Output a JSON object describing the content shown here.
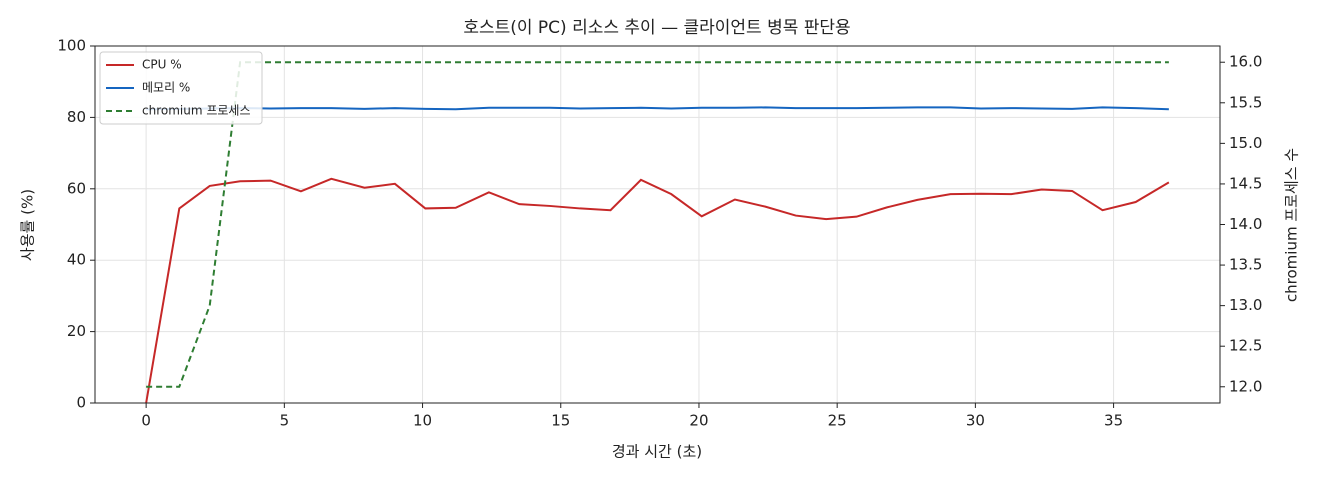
{
  "chart_data": {
    "type": "line",
    "title": "호스트(이 PC) 리소스 추이 — 클라이언트 병목 판단용",
    "x_label": "경과 시간 (초)",
    "y_label": "사용률 (%)",
    "y2_label": "chromium 프로세스 수",
    "x": [
      0,
      1.2,
      2.3,
      3.4,
      4.5,
      5.6,
      6.7,
      7.9,
      9.0,
      10.1,
      11.2,
      12.4,
      13.5,
      14.6,
      15.7,
      16.8,
      17.9,
      19.0,
      20.1,
      21.3,
      22.4,
      23.5,
      24.6,
      25.7,
      26.8,
      27.9,
      29.1,
      30.2,
      31.3,
      32.4,
      33.5,
      34.6,
      35.8,
      37.0
    ],
    "series": [
      {
        "name": "CPU %",
        "color": "#c62828",
        "dash": false,
        "values": [
          0,
          54.5,
          60.8,
          62.1,
          62.3,
          59.3,
          62.8,
          60.3,
          61.4,
          54.5,
          54.7,
          59.0,
          55.7,
          55.2,
          54.5,
          54.0,
          62.5,
          58.5,
          52.3,
          57.0,
          55.0,
          52.5,
          51.5,
          52.2,
          54.8,
          56.9,
          58.5,
          58.6,
          58.5,
          59.8,
          59.4,
          54.0,
          56.3,
          61.8
        ]
      },
      {
        "name": "메모리 %",
        "color": "#1565c0",
        "dash": false,
        "values": [
          82.3,
          82.4,
          82.5,
          82.6,
          82.5,
          82.6,
          82.6,
          82.4,
          82.6,
          82.4,
          82.3,
          82.7,
          82.7,
          82.7,
          82.5,
          82.6,
          82.7,
          82.5,
          82.7,
          82.7,
          82.8,
          82.6,
          82.6,
          82.6,
          82.7,
          82.8,
          82.8,
          82.5,
          82.6,
          82.5,
          82.4,
          82.8,
          82.6,
          82.3
        ]
      },
      {
        "name": "chromium 프로세스",
        "color": "#2e7d32",
        "dash": true,
        "axis": "y2",
        "values": [
          12,
          12,
          13,
          16,
          16,
          16,
          16,
          16,
          16,
          16,
          16,
          16,
          16,
          16,
          16,
          16,
          16,
          16,
          16,
          16,
          16,
          16,
          16,
          16,
          16,
          16,
          16,
          16,
          16,
          16,
          16,
          16,
          16,
          16
        ]
      }
    ],
    "xlim": [
      -1.85,
      38.85
    ],
    "xticks": [
      0,
      5,
      10,
      15,
      20,
      25,
      30,
      35
    ],
    "ylim": [
      0,
      100
    ],
    "yticks": [
      0,
      20,
      40,
      60,
      80,
      100
    ],
    "y2lim": [
      11.8,
      16.2
    ],
    "y2ticks": [
      {
        "value": 12,
        "label": "12.0"
      },
      12.5,
      {
        "value": 13,
        "label": "13.0"
      },
      13.5,
      {
        "value": 14,
        "label": "14.0"
      },
      14.5,
      {
        "value": 15,
        "label": "15.0"
      },
      15.5,
      {
        "value": 16,
        "label": "16.0"
      }
    ],
    "grid": true,
    "legend": "upper-left"
  }
}
